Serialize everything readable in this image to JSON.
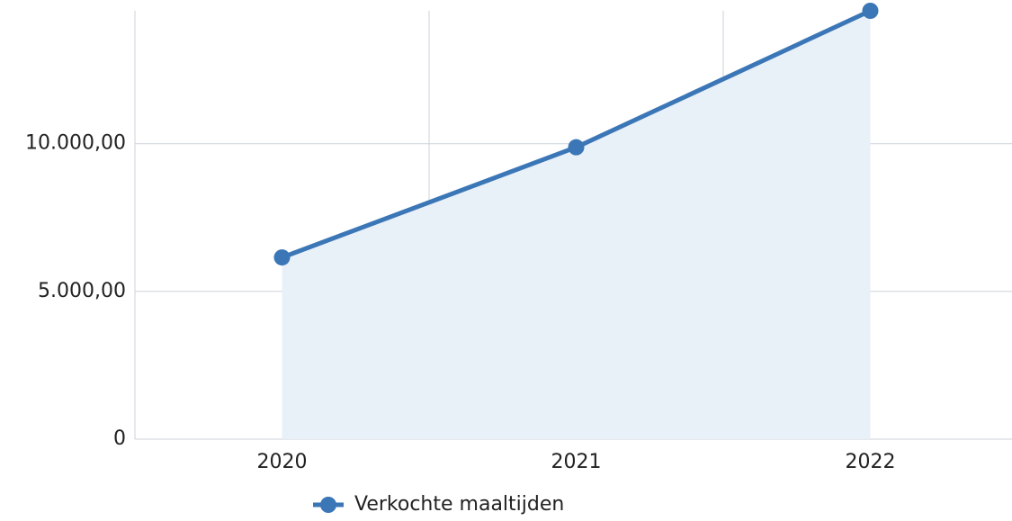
{
  "chart_data": {
    "type": "line",
    "categories": [
      "2020",
      "2021",
      "2022"
    ],
    "series": [
      {
        "name": "Verkochte maaltijden",
        "color": "#3b76b6",
        "values": [
          6150,
          9880,
          14500
        ]
      }
    ],
    "area": true,
    "area_color": "#e8f0f8",
    "ylim": [
      0,
      14500
    ],
    "yticks": [
      0,
      {
        "value": 5000,
        "label": "5.000,00"
      },
      {
        "value": 10000,
        "label": "10.000,00"
      }
    ],
    "grid": true,
    "legend": "bottom"
  }
}
